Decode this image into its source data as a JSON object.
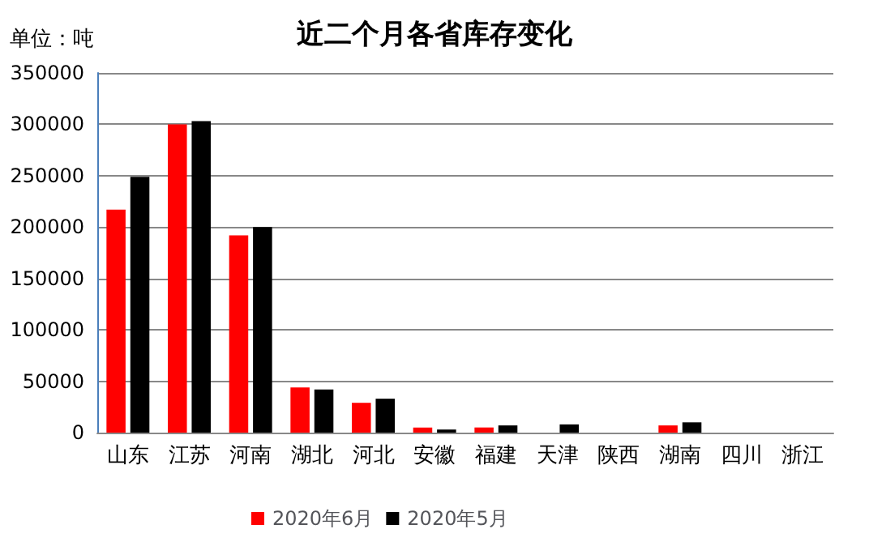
{
  "chart_data": {
    "type": "bar",
    "title": "近二个月各省库存变化",
    "ylabel": "单位：吨",
    "categories": [
      "山东",
      "江苏",
      "河南",
      "湖北",
      "河北",
      "安徽",
      "福建",
      "天津",
      "陕西",
      "湖南",
      "四川",
      "浙江"
    ],
    "series": [
      {
        "name": "2020年6月",
        "color": "#ff0000",
        "values": [
          217000,
          300000,
          192000,
          44000,
          29000,
          5000,
          5000,
          0,
          0,
          7000,
          0,
          0
        ]
      },
      {
        "name": "2020年5月",
        "color": "#000000",
        "values": [
          249000,
          303000,
          200000,
          42000,
          33000,
          3000,
          7000,
          8000,
          0,
          10000,
          0,
          0
        ]
      }
    ],
    "ylim": [
      0,
      350000
    ],
    "yticks": [
      0,
      50000,
      100000,
      150000,
      200000,
      250000,
      300000,
      350000
    ],
    "grid": "y",
    "legend": "bottom"
  }
}
